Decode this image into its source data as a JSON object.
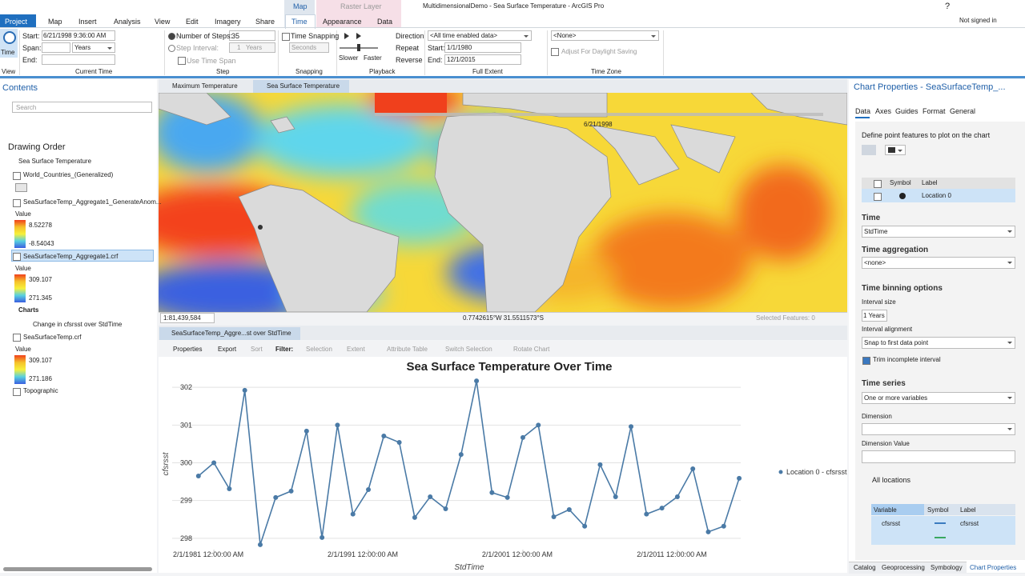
{
  "title_bar": {
    "title": "MultidimensionalDemo - Sea Surface Temperature - ArcGIS Pro",
    "help": "?",
    "account": "Not signed in"
  },
  "ribbon": {
    "context_headers": [
      "Map",
      "Raster Layer"
    ],
    "tabs": [
      "Project",
      "Map",
      "Insert",
      "Analysis",
      "View",
      "Edit",
      "Imagery",
      "Share",
      "Time",
      "Appearance",
      "Data"
    ],
    "groups": [
      "View",
      "Current Time",
      "Step",
      "Snapping",
      "Playback",
      "Full Extent",
      "Time Zone"
    ],
    "time_button": "Time",
    "current_time": {
      "start_label": "Start:",
      "start": "6/21/1998 9:36:00 AM",
      "span_label": "Span:",
      "span_unit": "Years",
      "end_label": "End:"
    },
    "step": {
      "number_label": "Number of Steps:",
      "number": 35,
      "interval_label": "Step Interval:",
      "interval": 1,
      "interval_unit": "Years",
      "use_span": "Use Time Span"
    },
    "snapping": {
      "label": "Time Snapping",
      "unit": "Seconds"
    },
    "playback": {
      "slower": "Slower",
      "faster": "Faster",
      "direction": "Direction",
      "repeat": "Repeat",
      "reverse": "Reverse"
    },
    "full_extent": {
      "source": "<All time enabled data>",
      "start_label": "Start:",
      "start": "1/1/1980",
      "end_label": "End:",
      "end": "12/1/2015"
    },
    "time_zone": {
      "zone": "<None>",
      "daylight": "Adjust For Daylight Saving"
    }
  },
  "contents": {
    "title": "Contents",
    "search": "Search",
    "drawing_order": "Drawing Order",
    "layers": [
      "Sea Surface Temperature",
      "World_Countries_(Generalized)",
      "SeaSurfaceTemp_Aggregate1_GenerateAnom...",
      "SeaSurfaceTemp_Aggregate1.crf",
      "SeaSurfaceTemp.crf",
      "Topographic"
    ],
    "legends": [
      {
        "label": "Value",
        "high": 8.52278,
        "low": -8.54043
      },
      {
        "label": "Value",
        "high": 309.107,
        "low": 271.345
      },
      {
        "label": "Value",
        "high": 309.107,
        "low": 271.186
      }
    ],
    "charts_heading": "Charts",
    "chart_item": "Change in  cfsrsst over StdTime"
  },
  "map_view": {
    "tabs": [
      "Maximum Temperature",
      "Sea Surface Temperature"
    ],
    "time": "6/21/1998",
    "scale": "1:81,439,584",
    "coordinates": "0.7742615°W 31.5511573°S",
    "selected": "Selected Features: 0"
  },
  "chart_view": {
    "tab": "SeaSurfaceTemp_Aggre...st over StdTime",
    "toolbar": [
      "Properties",
      "Export",
      "Sort",
      "Filter:",
      "Selection",
      "Extent",
      "Attribute Table",
      "Switch Selection",
      "Rotate Chart"
    ]
  },
  "chart_data": {
    "type": "line",
    "title": "Sea Surface Temperature Over Time",
    "x_label": "StdTime",
    "y_label": "cfsrsst",
    "x": [
      1980,
      1981,
      1982,
      1983,
      1984,
      1985,
      1986,
      1987,
      1988,
      1989,
      1990,
      1991,
      1992,
      1993,
      1994,
      1995,
      1996,
      1997,
      1998,
      1999,
      2000,
      2001,
      2002,
      2003,
      2004,
      2005,
      2006,
      2007,
      2008,
      2009,
      2010,
      2011,
      2012,
      2013,
      2014,
      2015
    ],
    "xlim": [
      1978.3,
      2015.1
    ],
    "xticks": [
      {
        "value": 1981,
        "label": "2/1/1981 12:00:00 AM"
      },
      {
        "value": 1991,
        "label": "2/1/1991 12:00:00 AM"
      },
      {
        "value": 2001,
        "label": "2/1/2001 12:00:00 AM"
      },
      {
        "value": 2011,
        "label": "2/1/2011 12:00:00 AM"
      }
    ],
    "ylim": [
      297.7,
      302.3
    ],
    "yticks": [
      298,
      299,
      300,
      301,
      302
    ],
    "grid": true,
    "series": [
      {
        "name": "Location 0 - cfsrsst",
        "color": "#4a7aa6",
        "values": [
          299.65,
          300.0,
          299.31,
          301.92,
          297.83,
          299.08,
          299.25,
          300.84,
          298.02,
          301.0,
          298.64,
          299.29,
          300.71,
          300.54,
          298.55,
          299.1,
          298.78,
          300.22,
          302.17,
          299.21,
          299.08,
          300.67,
          301.0,
          298.57,
          298.76,
          298.32,
          299.95,
          299.1,
          300.96,
          298.64,
          298.8,
          299.1,
          299.84,
          298.17,
          298.32,
          299.59
        ]
      }
    ]
  },
  "chart_properties": {
    "title": "Chart Properties - SeaSurfaceTemp_...",
    "tabs": [
      "Data",
      "Axes",
      "Guides",
      "Format",
      "General"
    ],
    "define_points": "Define point features to plot on the chart",
    "point_table": {
      "headers": [
        "Symbol",
        "Label"
      ],
      "rows": [
        [
          "Location 0"
        ]
      ]
    },
    "time_label": "Time",
    "time": "StdTime",
    "aggregation_label": "Time aggregation",
    "aggregation": "<none>",
    "binning_label": "Time binning options",
    "interval_size_label": "Interval size",
    "interval_size": "1 Years",
    "alignment_label": "Interval alignment",
    "alignment": "Snap to first data point",
    "trim": "Trim incomplete interval",
    "series_label": "Time series",
    "series_mode": "One or more variables",
    "dimension_label": "Dimension",
    "dimension_value_label": "Dimension Value",
    "all_locations": "All locations",
    "variable_table": {
      "headers": [
        "Variable",
        "Symbol",
        "Label"
      ],
      "rows": [
        [
          "cfsrsst",
          "cfsrsst"
        ]
      ]
    }
  },
  "bottom_tabs": [
    "Catalog",
    "Geoprocessing",
    "Symbology",
    "Chart Properties"
  ]
}
